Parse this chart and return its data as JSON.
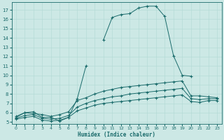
{
  "xlabel": "Humidex (Indice chaleur)",
  "bg_color": "#cce8e5",
  "line_color": "#1a6b6b",
  "grid_color": "#b0d8d4",
  "xlim": [
    -0.5,
    23.5
  ],
  "ylim": [
    4.8,
    17.8
  ],
  "xticks": [
    0,
    1,
    2,
    3,
    4,
    5,
    6,
    7,
    8,
    9,
    10,
    11,
    12,
    13,
    14,
    15,
    16,
    17,
    18,
    19,
    20,
    21,
    22,
    23
  ],
  "yticks": [
    5,
    6,
    7,
    8,
    9,
    10,
    11,
    12,
    13,
    14,
    15,
    16,
    17
  ],
  "line1_x": [
    0,
    1,
    2,
    3,
    4,
    5,
    6,
    7,
    8,
    9,
    10,
    11,
    12,
    13,
    14,
    15,
    16,
    17,
    18,
    19,
    20
  ],
  "line1_y": [
    5.6,
    6.0,
    6.1,
    5.5,
    5.5,
    5.1,
    5.5,
    7.5,
    11.0,
    null,
    13.8,
    16.2,
    16.5,
    16.6,
    17.2,
    17.4,
    17.4,
    16.3,
    12.1,
    10.0,
    9.9
  ],
  "line2_x": [
    0,
    1,
    2,
    3,
    4,
    5,
    6,
    7,
    8,
    9,
    10,
    11,
    12,
    13,
    14,
    15,
    16,
    17,
    18,
    19,
    20,
    21,
    22,
    23
  ],
  "line2_y": [
    5.5,
    6.0,
    5.9,
    5.8,
    5.6,
    5.8,
    6.1,
    7.3,
    7.6,
    8.0,
    8.3,
    8.5,
    8.7,
    8.8,
    8.9,
    9.0,
    9.1,
    9.2,
    9.3,
    9.4,
    7.8,
    7.8,
    7.7,
    7.6
  ],
  "line3_x": [
    0,
    1,
    2,
    3,
    4,
    5,
    6,
    7,
    8,
    9,
    10,
    11,
    12,
    13,
    14,
    15,
    16,
    17,
    18,
    19,
    20,
    21,
    22,
    23
  ],
  "line3_y": [
    5.4,
    5.7,
    5.8,
    5.4,
    5.3,
    5.4,
    5.7,
    6.6,
    7.0,
    7.3,
    7.5,
    7.7,
    7.8,
    8.0,
    8.1,
    8.2,
    8.3,
    8.4,
    8.5,
    8.6,
    7.5,
    7.4,
    7.5,
    7.5
  ],
  "line4_x": [
    0,
    1,
    2,
    3,
    4,
    5,
    6,
    7,
    8,
    9,
    10,
    11,
    12,
    13,
    14,
    15,
    16,
    17,
    18,
    19,
    20,
    21,
    22,
    23
  ],
  "line4_y": [
    5.3,
    5.5,
    5.6,
    5.2,
    5.1,
    5.2,
    5.5,
    6.2,
    6.5,
    6.8,
    7.0,
    7.1,
    7.2,
    7.3,
    7.4,
    7.5,
    7.6,
    7.7,
    7.8,
    7.9,
    7.2,
    7.1,
    7.3,
    7.3
  ]
}
